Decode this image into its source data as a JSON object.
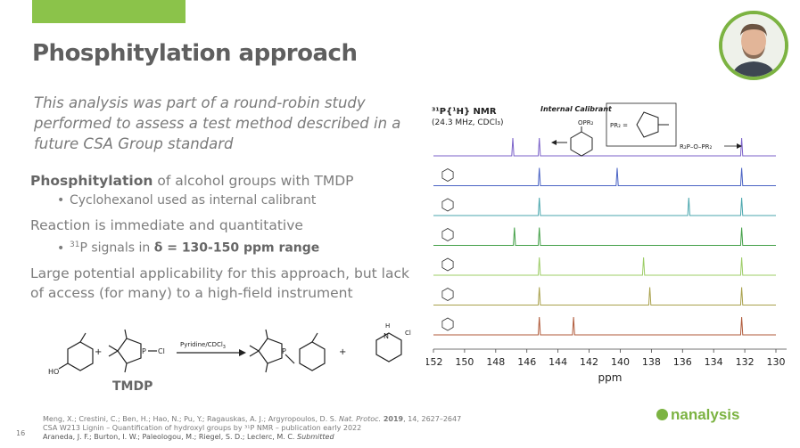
{
  "slide": {
    "title": "Phosphitylation approach",
    "page_number": "16",
    "intro": "This analysis was part of a round-robin study performed to assess a test method described in a future CSA Group standard",
    "bullet1_bold": "Phosphitylation",
    "bullet1_rest": " of alcohol groups with TMDP",
    "sub1": "Cyclohexanol used as internal calibrant",
    "bullet2": "Reaction is immediate and quantitative",
    "sub2_sup": "31",
    "sub2_text": "P signals in ",
    "sub2_bold": "δ = 130-150 ppm range",
    "bullet3": "Large potential applicability for this approach, but lack of access (for many) to a high-field instrument",
    "logo": "nanalysis"
  },
  "scheme": {
    "reagent_label": "Pyridine/CDCl",
    "reagent_sub": "3",
    "tmdp_label": "TMDP",
    "ho": "HO",
    "cl": "Cl",
    "p": "P",
    "plus": "+",
    "cl_minus": "Cl",
    "h": "H",
    "n": "N"
  },
  "references": {
    "line1_authors": "Meng, X.; Crestini, C.; Ben, H.; Hao, N.; Pu, Y.; Ragauskas, A. J.; Argyropoulos, D. S. ",
    "line1_journal": "Nat. Protoc.",
    "line1_year": " 2019",
    "line1_rest": ", 14, 2627–2647",
    "line2": "CSA W213 Lignin – Quantification of hydroxyl groups by ³¹P NMR – publication early 2022",
    "line3_authors": "Araneda, J. F.; Burton, I. W.; Paleologou, M.; Riegel, S. D.; Leclerc, M. C. ",
    "line3_status": "Submitted"
  },
  "chart_data": {
    "type": "line",
    "title": "³¹P{¹H} NMR",
    "subtitle": "(24.3 MHz, CDCl₃)",
    "xlabel": "ppm",
    "xlim": [
      152,
      130
    ],
    "x_ticks": [
      152,
      150,
      148,
      146,
      144,
      142,
      140,
      138,
      136,
      134,
      132,
      130
    ],
    "annotations": {
      "internal_calibrant": "Internal Calibrant",
      "opr2": "OPR₂",
      "pr2_def": "PR₂ =",
      "r2p_o_pr2": "R₂P–O–PR₂"
    },
    "series": [
      {
        "color": "#7b62c9",
        "peaks": [
          146.9,
          145.2,
          132.2
        ]
      },
      {
        "color": "#4a63c4",
        "peaks": [
          145.2,
          140.2,
          132.2
        ]
      },
      {
        "color": "#49a6ad",
        "peaks": [
          145.2,
          135.6,
          132.2
        ]
      },
      {
        "color": "#43a047",
        "peaks": [
          146.8,
          145.2,
          132.2
        ]
      },
      {
        "color": "#9ccc65",
        "peaks": [
          145.2,
          138.5,
          132.2
        ]
      },
      {
        "color": "#a8a04a",
        "peaks": [
          145.2,
          138.1,
          132.2
        ]
      },
      {
        "color": "#b05a3a",
        "peaks": [
          145.2,
          143.0,
          132.2
        ]
      }
    ]
  }
}
